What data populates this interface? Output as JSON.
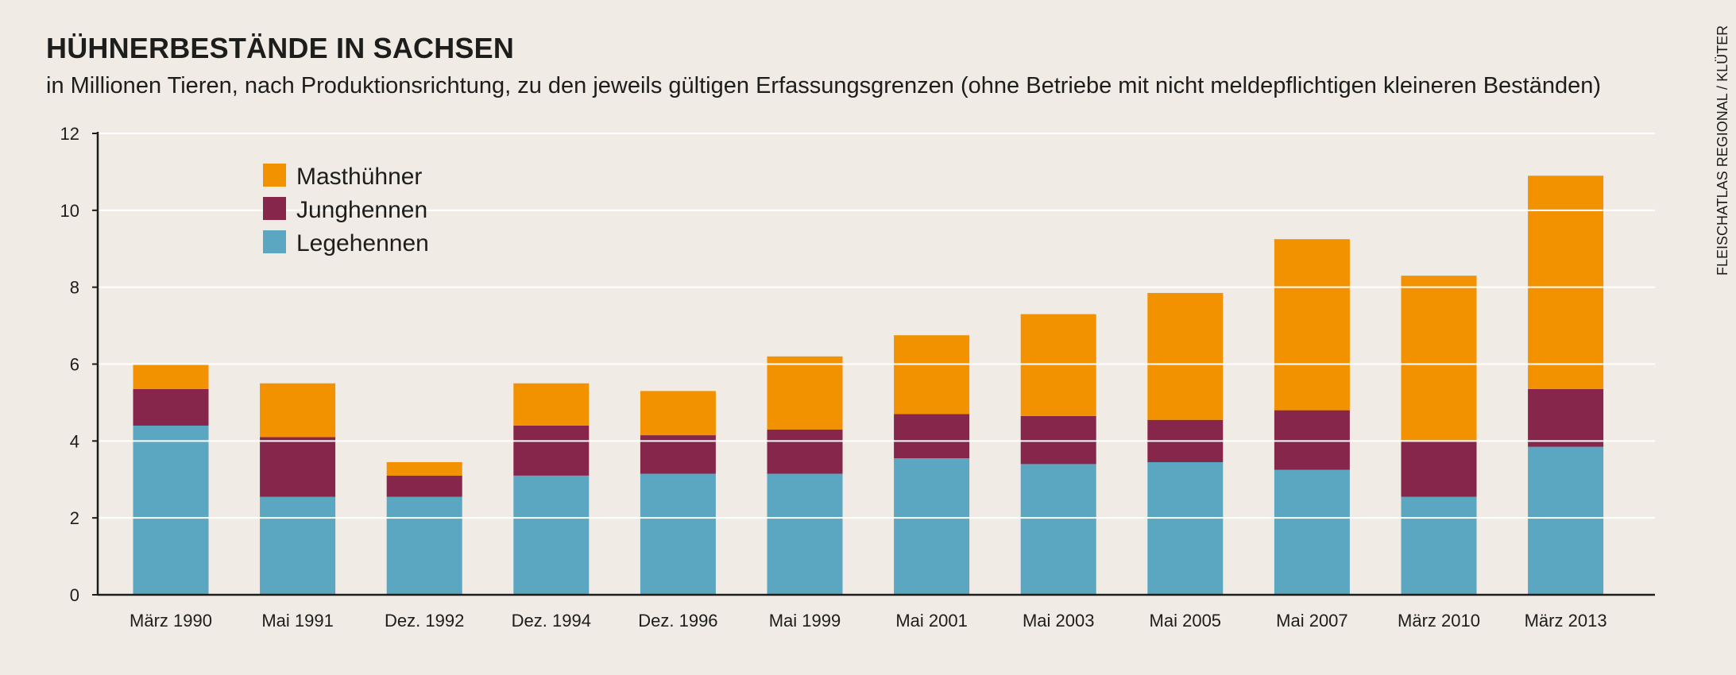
{
  "header": {
    "title": "HÜHNERBESTÄNDE IN SACHSEN",
    "subtitle": "in Millionen Tieren, nach Produktionsrichtung, zu den jeweils gültigen Erfassungsgrenzen (ohne Betriebe mit nicht meldepflichtigen kleineren Beständen)",
    "source": "FLEISCHATLAS REGIONAL / KLÜTER"
  },
  "colors": {
    "background": "#f0ebe4",
    "Legehennen": "#5ba6c0",
    "Junghennen": "#85264a",
    "Masthühner": "#f39200",
    "gridline": "#ffffff",
    "axis": "#1d1d1b"
  },
  "chart_data": {
    "type": "bar",
    "stacked": true,
    "categories": [
      "März 1990",
      "Mai 1991",
      "Dez. 1992",
      "Dez. 1994",
      "Dez. 1996",
      "Mai 1999",
      "Mai 2001",
      "Mai 2003",
      "Mai 2005",
      "Mai 2007",
      "März 2010",
      "März 2013"
    ],
    "series": [
      {
        "name": "Legehennen",
        "values": [
          4.4,
          2.55,
          2.55,
          3.1,
          3.15,
          3.15,
          3.55,
          3.4,
          3.45,
          3.25,
          2.55,
          3.85
        ]
      },
      {
        "name": "Junghennen",
        "values": [
          0.95,
          1.55,
          0.55,
          1.3,
          1.0,
          1.15,
          1.15,
          1.25,
          1.1,
          1.55,
          1.45,
          1.5
        ]
      },
      {
        "name": "Masthühner",
        "values": [
          0.65,
          1.4,
          0.35,
          1.1,
          1.15,
          1.9,
          2.05,
          2.65,
          3.3,
          4.45,
          4.3,
          5.55
        ]
      }
    ],
    "ylim": [
      0,
      12
    ],
    "yticks": [
      0,
      2,
      4,
      6,
      8,
      10,
      12
    ],
    "xlabel": "",
    "ylabel": "",
    "grid": true,
    "legend_position": "top-left",
    "legend_order": [
      "Masthühner",
      "Junghennen",
      "Legehennen"
    ]
  }
}
